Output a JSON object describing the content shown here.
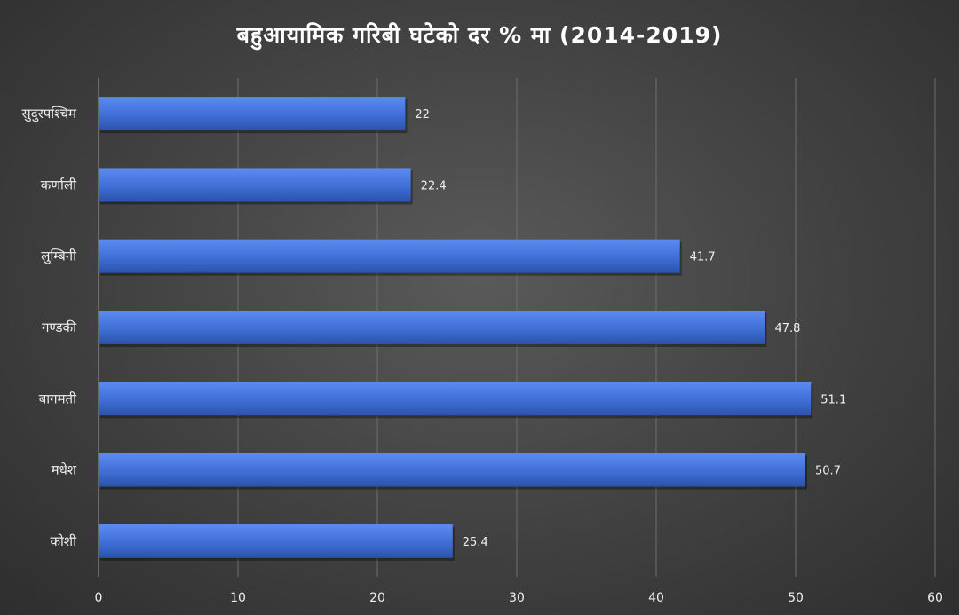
{
  "chart_data": {
    "type": "bar",
    "orientation": "horizontal",
    "title": "बहुआयामिक गरिबी घटेको दर % मा (2014-2019)",
    "categories": [
      "सुदुरपश्चिम",
      "कर्णाली",
      "लुम्बिनी",
      "गण्डकी",
      "बागमती",
      "मधेश",
      "कोशी"
    ],
    "values": [
      22,
      22.4,
      41.7,
      47.8,
      51.1,
      50.7,
      25.4
    ],
    "value_labels": [
      "22",
      "22.4",
      "41.7",
      "47.8",
      "51.1",
      "50.7",
      "25.4"
    ],
    "xlim": [
      0,
      60
    ],
    "x_ticks": [
      "0",
      "10",
      "20",
      "30",
      "40",
      "50",
      "60"
    ],
    "grid": true,
    "legend": "none",
    "bar_color": "#3f6fd6",
    "background_color": "#3d3d3d",
    "text_color": "#f0f0f0"
  }
}
